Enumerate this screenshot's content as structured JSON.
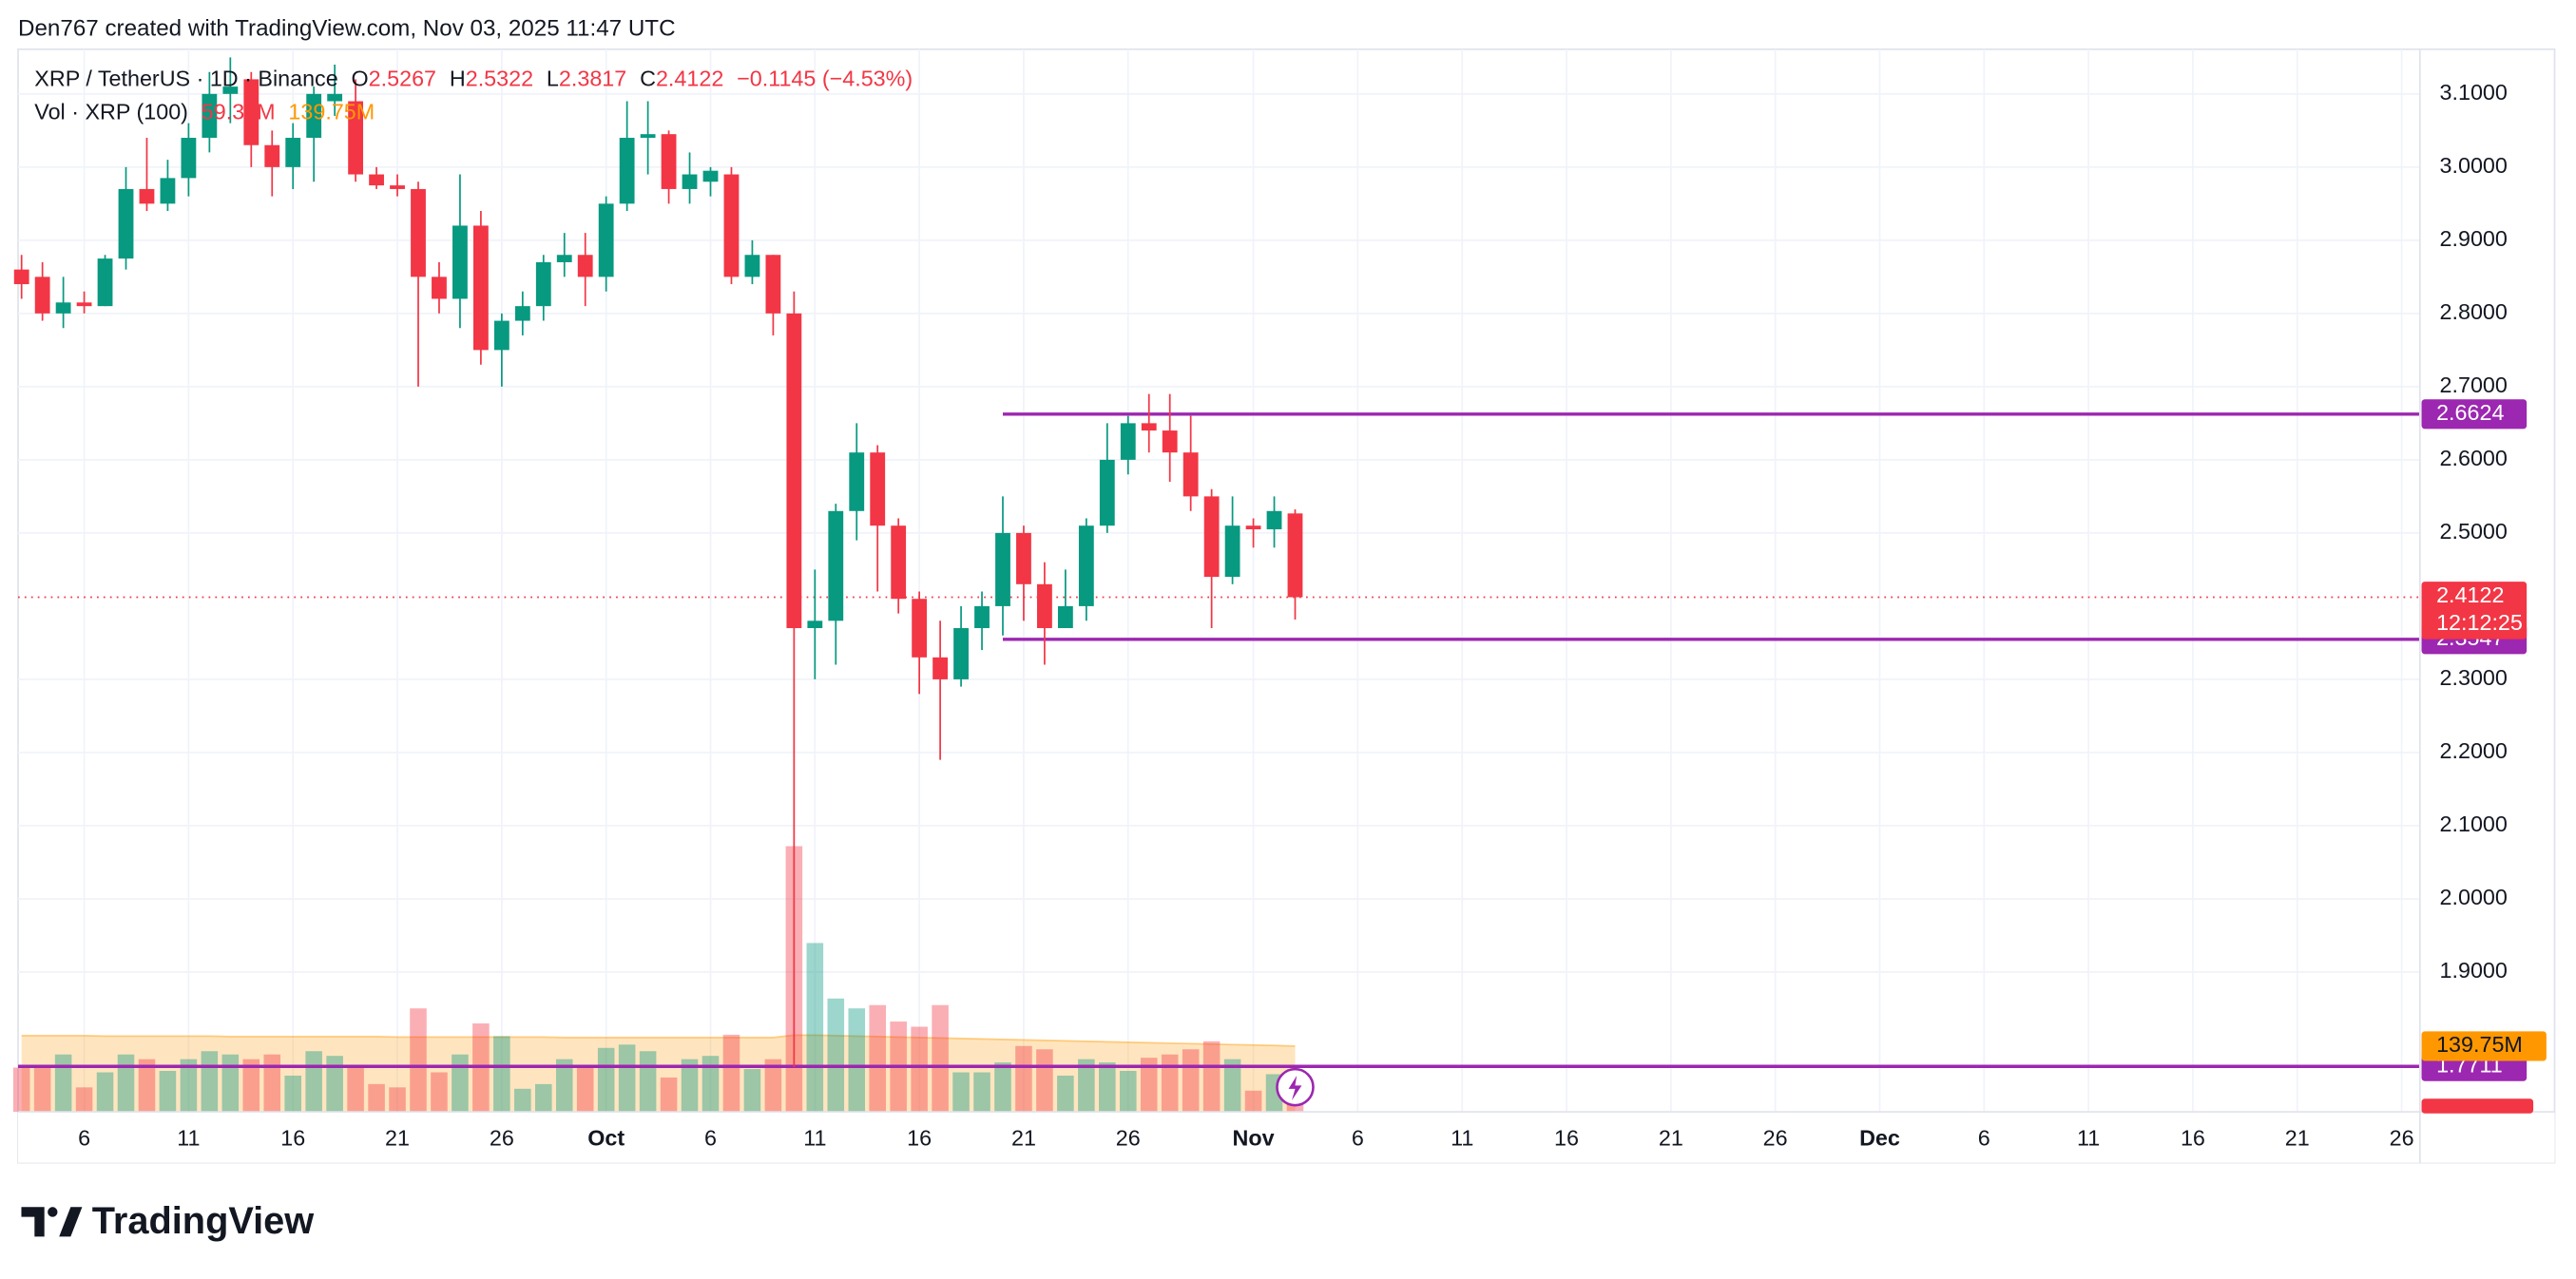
{
  "header": "Den767 created with TradingView.com, Nov 03, 2025 11:47 UTC",
  "logo": "TradingView",
  "chart_data": {
    "type": "candlestick",
    "legend": {
      "symbol": "XRP / TetherUS · 1D · Binance",
      "o": "O",
      "h": "H",
      "l": "L",
      "c": "C",
      "change": "−0.1145 (−4.53%)",
      "vol_title": "Vol · XRP (100)",
      "vol_value": "59.31M",
      "vol_ma_value": "139.75M"
    },
    "countdown": "12:12:25",
    "up_color": "#089981",
    "down_color": "#f23645",
    "level_color": "#9c27b0",
    "vol_ma_color": "#ff9800",
    "grid": true,
    "x": [
      "2025-09-03",
      "2025-09-04",
      "2025-09-05",
      "2025-09-06",
      "2025-09-07",
      "2025-09-08",
      "2025-09-09",
      "2025-09-10",
      "2025-09-11",
      "2025-09-12",
      "2025-09-13",
      "2025-09-14",
      "2025-09-15",
      "2025-09-16",
      "2025-09-17",
      "2025-09-18",
      "2025-09-19",
      "2025-09-20",
      "2025-09-21",
      "2025-09-22",
      "2025-09-23",
      "2025-09-24",
      "2025-09-25",
      "2025-09-26",
      "2025-09-27",
      "2025-09-28",
      "2025-09-29",
      "2025-09-30",
      "2025-10-01",
      "2025-10-02",
      "2025-10-03",
      "2025-10-04",
      "2025-10-05",
      "2025-10-06",
      "2025-10-07",
      "2025-10-08",
      "2025-10-09",
      "2025-10-10",
      "2025-10-11",
      "2025-10-12",
      "2025-10-13",
      "2025-10-14",
      "2025-10-15",
      "2025-10-16",
      "2025-10-17",
      "2025-10-18",
      "2025-10-19",
      "2025-10-20",
      "2025-10-21",
      "2025-10-22",
      "2025-10-23",
      "2025-10-24",
      "2025-10-25",
      "2025-10-26",
      "2025-10-27",
      "2025-10-28",
      "2025-10-29",
      "2025-10-30",
      "2025-10-31",
      "2025-11-01",
      "2025-11-02",
      "2025-11-03"
    ],
    "open": [
      2.86,
      2.85,
      2.8,
      2.815,
      2.81,
      2.875,
      2.97,
      2.95,
      2.985,
      3.04,
      3.1,
      3.12,
      3.03,
      3.0,
      3.04,
      3.09,
      3.09,
      2.99,
      2.975,
      2.97,
      2.85,
      2.82,
      2.92,
      2.75,
      2.79,
      2.81,
      2.87,
      2.88,
      2.85,
      2.95,
      3.04,
      3.045,
      2.97,
      2.98,
      2.99,
      2.85,
      2.88,
      2.8,
      2.37,
      2.38,
      2.53,
      2.61,
      2.51,
      2.41,
      2.33,
      2.3,
      2.37,
      2.4,
      2.5,
      2.43,
      2.37,
      2.4,
      2.51,
      2.6,
      2.65,
      2.64,
      2.61,
      2.55,
      2.44,
      2.51,
      2.505,
      2.5267
    ],
    "high": [
      2.88,
      2.87,
      2.85,
      2.83,
      2.88,
      3.0,
      3.04,
      3.01,
      3.06,
      3.13,
      3.15,
      3.13,
      3.05,
      3.06,
      3.11,
      3.14,
      3.12,
      3.0,
      2.99,
      2.98,
      2.87,
      2.99,
      2.94,
      2.8,
      2.83,
      2.88,
      2.91,
      2.91,
      2.96,
      3.09,
      3.09,
      3.05,
      3.02,
      3.0,
      3.0,
      2.9,
      2.88,
      2.83,
      2.45,
      2.54,
      2.65,
      2.62,
      2.52,
      2.42,
      2.38,
      2.4,
      2.42,
      2.55,
      2.51,
      2.46,
      2.45,
      2.52,
      2.65,
      2.66,
      2.69,
      2.69,
      2.66,
      2.56,
      2.55,
      2.52,
      2.55,
      2.5322
    ],
    "low": [
      2.82,
      2.79,
      2.78,
      2.8,
      2.81,
      2.86,
      2.94,
      2.94,
      2.96,
      3.02,
      3.06,
      3.0,
      2.96,
      2.97,
      2.98,
      3.07,
      2.98,
      2.97,
      2.96,
      2.7,
      2.8,
      2.78,
      2.73,
      2.7,
      2.77,
      2.79,
      2.85,
      2.81,
      2.83,
      2.94,
      2.99,
      2.95,
      2.95,
      2.96,
      2.84,
      2.84,
      2.77,
      1.77,
      2.3,
      2.32,
      2.49,
      2.42,
      2.39,
      2.28,
      2.19,
      2.29,
      2.34,
      2.36,
      2.38,
      2.32,
      2.37,
      2.38,
      2.5,
      2.58,
      2.61,
      2.57,
      2.53,
      2.37,
      2.43,
      2.48,
      2.48,
      2.3817
    ],
    "close": [
      2.84,
      2.8,
      2.815,
      2.81,
      2.875,
      2.97,
      2.95,
      2.985,
      3.04,
      3.1,
      3.11,
      3.03,
      3.0,
      3.04,
      3.1,
      3.1,
      2.99,
      2.975,
      2.97,
      2.85,
      2.82,
      2.92,
      2.75,
      2.79,
      2.81,
      2.87,
      2.88,
      2.85,
      2.95,
      3.04,
      3.045,
      2.97,
      2.99,
      2.995,
      2.85,
      2.88,
      2.8,
      2.37,
      2.38,
      2.53,
      2.61,
      2.51,
      2.41,
      2.33,
      2.3,
      2.37,
      2.4,
      2.5,
      2.43,
      2.37,
      2.4,
      2.51,
      2.6,
      2.65,
      2.64,
      2.61,
      2.55,
      2.44,
      2.51,
      2.505,
      2.53,
      2.4122
    ],
    "volume": [
      94,
      94,
      122,
      52,
      84,
      122,
      112,
      87,
      112,
      129,
      122,
      112,
      122,
      77,
      129,
      119,
      94,
      59,
      52,
      220,
      84,
      122,
      188,
      161,
      49,
      59,
      112,
      94,
      136,
      143,
      129,
      73,
      112,
      119,
      164,
      91,
      112,
      565,
      359,
      241,
      220,
      227,
      192,
      181,
      227,
      84,
      84,
      105,
      140,
      133,
      77,
      112,
      105,
      87,
      115,
      122,
      133,
      150,
      112,
      45,
      80,
      59.31
    ],
    "volume_ma": [
      162,
      162,
      162,
      162,
      161,
      161,
      161,
      161,
      161,
      161,
      160,
      160,
      160,
      160,
      160,
      160,
      160,
      160,
      159,
      159,
      159,
      159,
      159,
      159,
      159,
      159,
      158,
      158,
      158,
      158,
      158,
      158,
      158,
      158,
      158,
      158,
      158,
      163,
      163,
      162,
      161,
      160,
      159,
      158,
      157,
      156,
      155,
      154,
      153,
      152,
      151,
      150,
      149,
      148,
      147,
      146,
      145,
      144,
      143,
      142,
      141,
      139.75
    ],
    "ylim": [
      1.709,
      3.161
    ],
    "volume_ylim": [
      0,
      2260
    ],
    "xlim": [
      "2025-09-02T20:00",
      "2025-12-26T21:00"
    ],
    "yticks": [
      {
        "value": 3.1,
        "label": "3.1000"
      },
      {
        "value": 3.0,
        "label": "3.0000"
      },
      {
        "value": 2.9,
        "label": "2.9000"
      },
      {
        "value": 2.8,
        "label": "2.8000"
      },
      {
        "value": 2.7,
        "label": "2.7000"
      },
      {
        "value": 2.6,
        "label": "2.6000"
      },
      {
        "value": 2.5,
        "label": "2.5000"
      },
      {
        "value": 2.3,
        "label": "2.3000"
      },
      {
        "value": 2.2,
        "label": "2.2000"
      },
      {
        "value": 2.1,
        "label": "2.1000"
      },
      {
        "value": 2.0,
        "label": "2.0000"
      },
      {
        "value": 1.9,
        "label": "1.9000"
      }
    ],
    "xticks": [
      {
        "value": "2025-09-06",
        "label": "6"
      },
      {
        "value": "2025-09-11",
        "label": "11"
      },
      {
        "value": "2025-09-16",
        "label": "16"
      },
      {
        "value": "2025-09-21",
        "label": "21"
      },
      {
        "value": "2025-09-26",
        "label": "26"
      },
      {
        "value": "2025-10-01",
        "label": "Oct"
      },
      {
        "value": "2025-10-06",
        "label": "6"
      },
      {
        "value": "2025-10-11",
        "label": "11"
      },
      {
        "value": "2025-10-16",
        "label": "16"
      },
      {
        "value": "2025-10-21",
        "label": "21"
      },
      {
        "value": "2025-10-26",
        "label": "26"
      },
      {
        "value": "2025-11-01",
        "label": "Nov"
      },
      {
        "value": "2025-11-06",
        "label": "6"
      },
      {
        "value": "2025-11-11",
        "label": "11"
      },
      {
        "value": "2025-11-16",
        "label": "16"
      },
      {
        "value": "2025-11-21",
        "label": "21"
      },
      {
        "value": "2025-11-26",
        "label": "26"
      },
      {
        "value": "2025-12-01",
        "label": "Dec"
      },
      {
        "value": "2025-12-06",
        "label": "6"
      },
      {
        "value": "2025-12-11",
        "label": "11"
      },
      {
        "value": "2025-12-16",
        "label": "16"
      },
      {
        "value": "2025-12-21",
        "label": "21"
      },
      {
        "value": "2025-12-26",
        "label": "26"
      }
    ],
    "levels": [
      {
        "value": 2.6624,
        "start": "2025-10-20"
      },
      {
        "value": 2.3547,
        "start": "2025-10-20"
      },
      {
        "value": 1.7711
      }
    ]
  }
}
